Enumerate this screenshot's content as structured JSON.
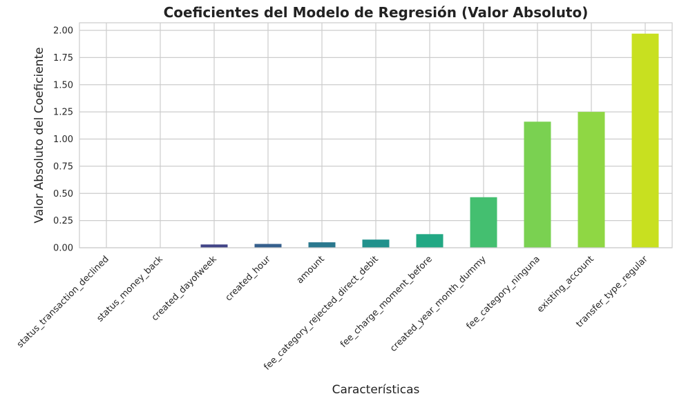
{
  "chart_data": {
    "type": "bar",
    "title": "Coeficientes del Modelo de Regresión (Valor Absoluto)",
    "xlabel": "Características",
    "ylabel": "Valor Absoluto del Coeficiente",
    "ylim": [
      0,
      2.07
    ],
    "yticks": [
      "0.00",
      "0.25",
      "0.50",
      "0.75",
      "1.00",
      "1.25",
      "1.50",
      "1.75",
      "2.00"
    ],
    "grid": true,
    "categories": [
      "status_transaction_declined",
      "status_money_back",
      "created_dayofweek",
      "created_hour",
      "amount",
      "fee_category_rejected_direct_debit",
      "fee_charge_moment_before",
      "created_year_month_dummy",
      "fee_category_ninguna",
      "existing_account",
      "transfer_type_regular"
    ],
    "values": [
      0.0,
      0.0,
      0.03,
      0.035,
      0.05,
      0.075,
      0.125,
      0.465,
      1.16,
      1.25,
      1.97
    ],
    "colors": [
      "#440154",
      "#482475",
      "#414487",
      "#355f8d",
      "#2a788e",
      "#21918c",
      "#22a884",
      "#44bf70",
      "#7ad151",
      "#8fd744",
      "#c8e020"
    ]
  }
}
